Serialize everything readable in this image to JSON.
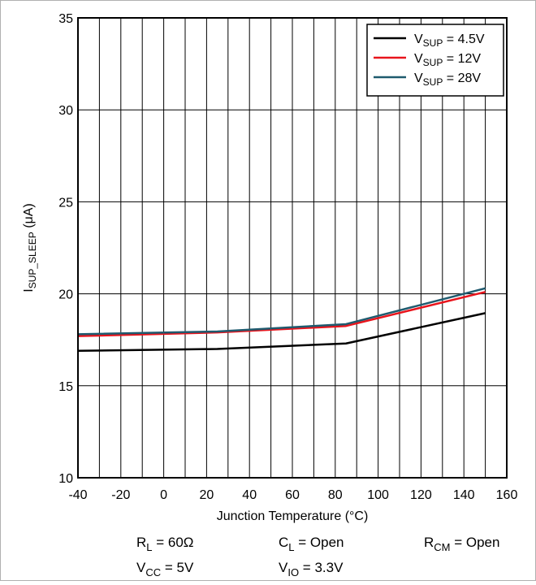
{
  "chart_data": {
    "type": "line",
    "xlabel": "Junction Temperature (°C)",
    "ylabel": {
      "main": "I",
      "sub": "SUP_SLEEP",
      "unit": " (μA)"
    },
    "xlim": [
      -40,
      160
    ],
    "ylim": [
      10,
      35
    ],
    "xticks": [
      -40,
      -20,
      0,
      20,
      40,
      60,
      80,
      100,
      120,
      140,
      160
    ],
    "yticks": [
      10,
      15,
      20,
      25,
      30,
      35
    ],
    "grid": true,
    "legend_position": "top-right",
    "series": [
      {
        "name": {
          "main": "V",
          "sub": "SUP",
          "rest": " = 4.5V"
        },
        "color": "#000000",
        "x": [
          -40,
          25,
          85,
          150
        ],
        "y": [
          16.9,
          17.0,
          17.3,
          18.95
        ]
      },
      {
        "name": {
          "main": "V",
          "sub": "SUP",
          "rest": " = 12V"
        },
        "color": "#e8141c",
        "x": [
          -40,
          25,
          85,
          150
        ],
        "y": [
          17.7,
          17.9,
          18.25,
          20.1
        ]
      },
      {
        "name": {
          "main": "V",
          "sub": "SUP",
          "rest": " = 28V"
        },
        "color": "#1f5a6e",
        "x": [
          -40,
          25,
          85,
          150
        ],
        "y": [
          17.8,
          17.95,
          18.35,
          20.3
        ]
      }
    ]
  },
  "conditions": {
    "rl": {
      "main": "R",
      "sub": "L",
      "rest": " = 60Ω"
    },
    "cl": {
      "main": "C",
      "sub": "L",
      "rest": " = Open"
    },
    "rcm": {
      "main": "R",
      "sub": "CM",
      "rest": " = Open"
    },
    "vcc": {
      "main": "V",
      "sub": "CC",
      "rest": " = 5V"
    },
    "vio": {
      "main": "V",
      "sub": "IO",
      "rest": " = 3.3V"
    }
  }
}
